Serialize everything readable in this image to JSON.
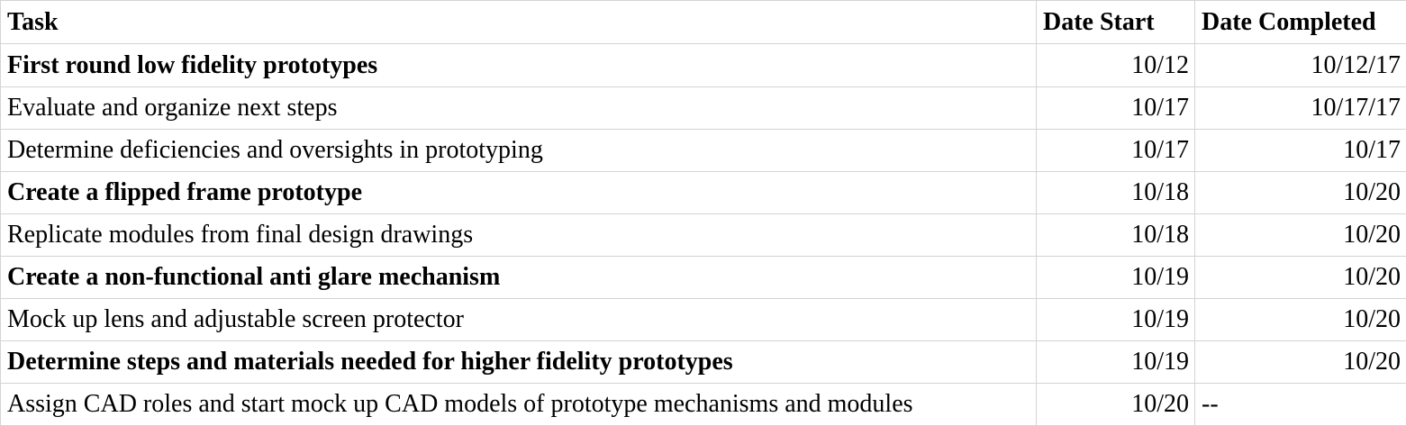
{
  "table": {
    "headers": {
      "task": "Task",
      "date_start": "Date Start",
      "date_completed": "Date Completed"
    },
    "rows": [
      {
        "task": "First round low fidelity prototypes",
        "start": "10/12",
        "completed": "10/12/17",
        "bold": true
      },
      {
        "task": "Evaluate and organize next steps",
        "start": "10/17",
        "completed": "10/17/17",
        "bold": false
      },
      {
        "task": "Determine deficiencies and oversights in prototyping",
        "start": "10/17",
        "completed": "10/17",
        "bold": false
      },
      {
        "task": "Create a flipped frame prototype",
        "start": "10/18",
        "completed": "10/20",
        "bold": true
      },
      {
        "task": "Replicate modules from final design drawings",
        "start": "10/18",
        "completed": "10/20",
        "bold": false
      },
      {
        "task": "Create a non-functional anti glare mechanism",
        "start": "10/19",
        "completed": "10/20",
        "bold": true
      },
      {
        "task": "Mock up lens and adjustable screen protector",
        "start": "10/19",
        "completed": "10/20",
        "bold": false
      },
      {
        "task": "Determine steps and materials needed for higher fidelity prototypes",
        "start": "10/19",
        "completed": "10/20",
        "bold": true
      },
      {
        "task": "Assign CAD roles and start mock up CAD models of prototype mechanisms and modules",
        "start": "10/20",
        "completed": "--",
        "bold": false
      }
    ]
  }
}
